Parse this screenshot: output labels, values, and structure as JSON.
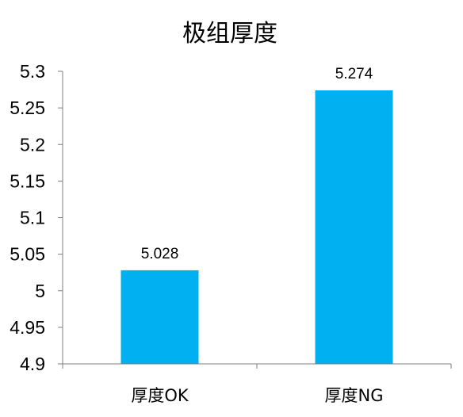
{
  "chart_data": {
    "type": "bar",
    "title": "极组厚度",
    "categories": [
      "厚度OK",
      "厚度NG"
    ],
    "values": [
      5.028,
      5.274
    ],
    "data_labels": [
      "5.028",
      "5.274"
    ],
    "ylim": [
      4.9,
      5.3
    ],
    "yticks": [
      "4.9",
      "4.95",
      "5",
      "5.05",
      "5.1",
      "5.15",
      "5.2",
      "5.25",
      "5.3"
    ],
    "xlabel": "",
    "ylabel": "",
    "grid": false,
    "legend": "none",
    "bar_color": "#00b0f0",
    "axis_color": "#7f7f7f"
  }
}
